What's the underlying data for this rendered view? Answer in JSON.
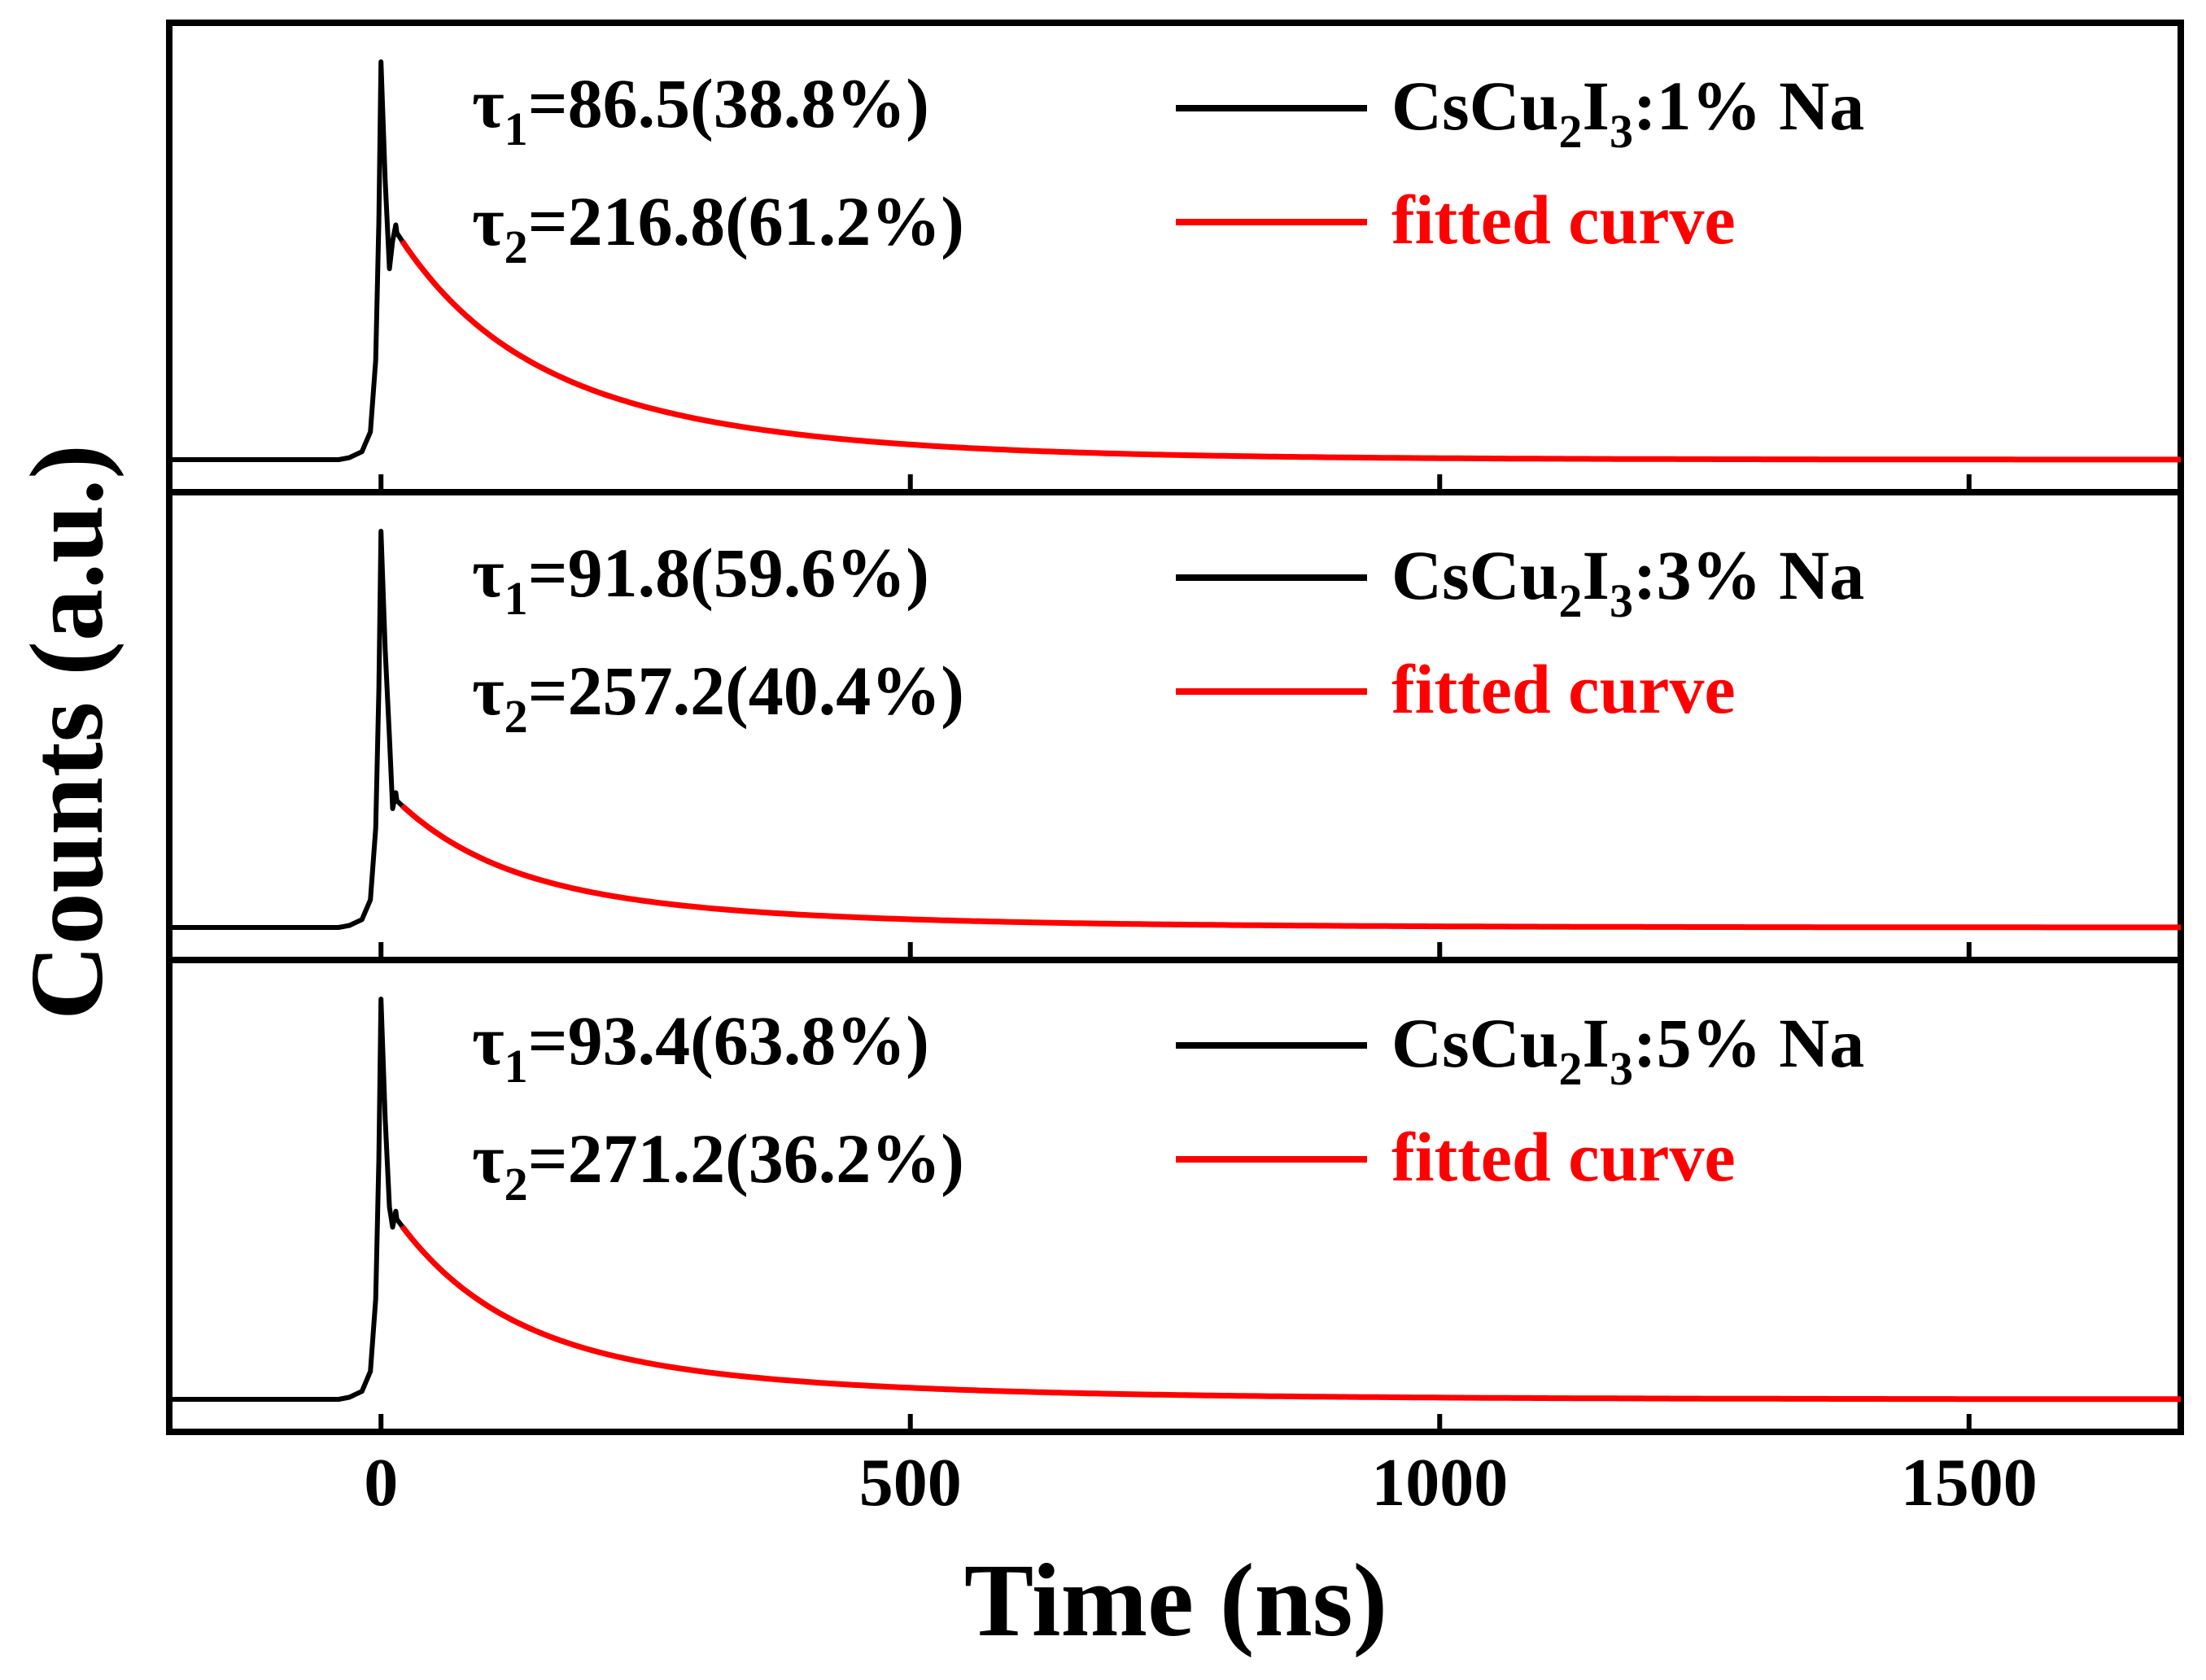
{
  "chart_data": {
    "type": "line",
    "xlabel": "Time (ns)",
    "ylabel": "Counts (a.u.)",
    "xlim": [
      -200,
      1700
    ],
    "xticks": [
      0,
      500,
      1000,
      1500
    ],
    "xtick_labels": [
      "0",
      "500",
      "1000",
      "1500"
    ],
    "grid": false,
    "panels": [
      {
        "legend": {
          "data_label": "CsCu₂I₃:1% Na",
          "fit_label": "fitted curve",
          "data_color": "#000000",
          "fit_color": "#ff0000",
          "placement": "top-right"
        },
        "tau1": {
          "symbol": "τ",
          "sub": "1",
          "value": "=86.5(38.8%)",
          "lifetime_ns": 86.5,
          "amplitude_pct": 38.8
        },
        "tau2": {
          "symbol": "τ",
          "sub": "2",
          "value": "=216.8(61.2%)",
          "lifetime_ns": 216.8,
          "amplitude_pct": 61.2
        },
        "baseline_value": 0.0,
        "peak_value": 1.0,
        "shoulder_value": 0.57
      },
      {
        "legend": {
          "data_label": "CsCu₂I₃:3% Na",
          "fit_label": "fitted curve",
          "data_color": "#000000",
          "fit_color": "#ff0000",
          "placement": "top-right"
        },
        "tau1": {
          "symbol": "τ",
          "sub": "1",
          "value": "=91.8(59.6%)",
          "lifetime_ns": 91.8,
          "amplitude_pct": 59.6
        },
        "tau2": {
          "symbol": "τ",
          "sub": "2",
          "value": "=257.2(40.4%)",
          "lifetime_ns": 257.2,
          "amplitude_pct": 40.4
        },
        "baseline_value": 0.0,
        "peak_value": 1.0,
        "shoulder_value": 0.32
      },
      {
        "legend": {
          "data_label": "CsCu₂I₃:5% Na",
          "fit_label": "fitted curve",
          "data_color": "#000000",
          "fit_color": "#ff0000",
          "placement": "top-right"
        },
        "tau1": {
          "symbol": "τ",
          "sub": "1",
          "value": "=93.4(63.8%)",
          "lifetime_ns": 93.4,
          "amplitude_pct": 63.8
        },
        "tau2": {
          "symbol": "τ",
          "sub": "2",
          "value": "=271.2(36.2%)",
          "lifetime_ns": 271.2,
          "amplitude_pct": 36.2
        },
        "baseline_value": 0.0,
        "peak_value": 1.0,
        "shoulder_value": 0.45
      }
    ]
  }
}
